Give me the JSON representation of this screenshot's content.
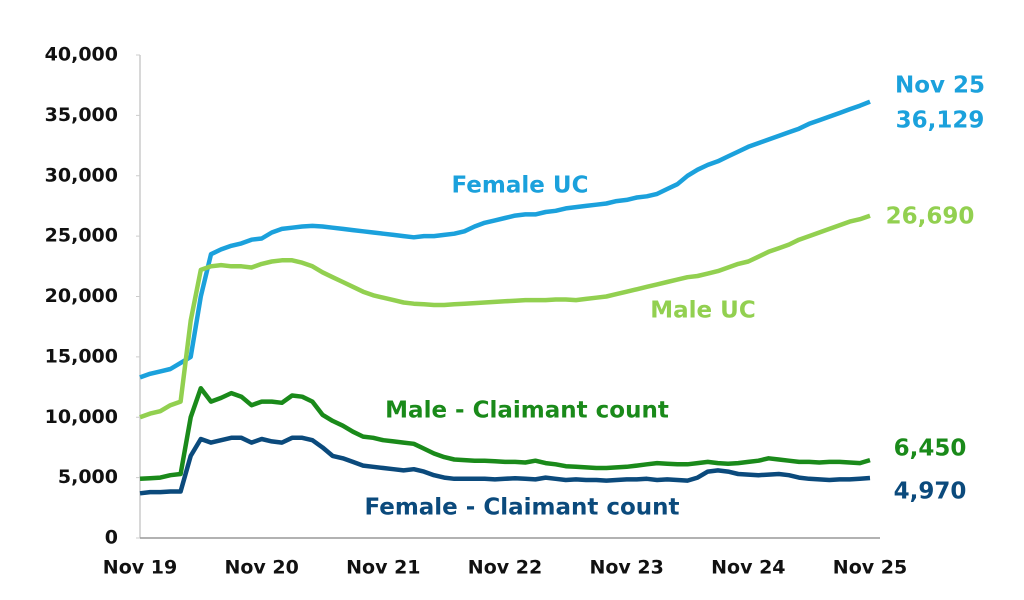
{
  "chart_data": {
    "type": "line",
    "categories": [
      "Nov 19",
      null,
      null,
      null,
      null,
      null,
      null,
      null,
      null,
      null,
      null,
      null,
      "Nov 20",
      null,
      null,
      null,
      null,
      null,
      null,
      null,
      null,
      null,
      null,
      null,
      "Nov 21",
      null,
      null,
      null,
      null,
      null,
      null,
      null,
      null,
      null,
      null,
      null,
      "Nov 22",
      null,
      null,
      null,
      null,
      null,
      null,
      null,
      null,
      null,
      null,
      null,
      "Nov 23",
      null,
      null,
      null,
      null,
      null,
      null,
      null,
      null,
      null,
      null,
      null,
      "Nov 24",
      null,
      null,
      null,
      null,
      null,
      null,
      null,
      null,
      null,
      null,
      null,
      "Nov 25"
    ],
    "ylim": [
      0,
      40000
    ],
    "yticks": [
      0,
      {
        "value": 5000,
        "label": "5,000"
      },
      {
        "value": 10000,
        "label": "10,000"
      },
      {
        "value": 15000,
        "label": "15,000"
      },
      {
        "value": 20000,
        "label": "20,000"
      },
      {
        "value": 25000,
        "label": "25,000"
      },
      {
        "value": 30000,
        "label": "30,000"
      },
      {
        "value": 35000,
        "label": "35,000"
      },
      {
        "value": 40000,
        "label": "40,000"
      }
    ],
    "grid": false,
    "annotations": [
      "Nov 25"
    ],
    "series": [
      {
        "name": "Female UC",
        "color": "#1ba1dc",
        "values": [
          13300,
          13600,
          13800,
          14000,
          14500,
          15000,
          20000,
          23500,
          23900,
          24200,
          24400,
          24700,
          24800,
          25300,
          25600,
          25700,
          25800,
          25850,
          25800,
          25700,
          25600,
          25500,
          25400,
          25300,
          25200,
          25100,
          25000,
          24900,
          25000,
          25000,
          25100,
          25200,
          25400,
          25800,
          26100,
          26300,
          26500,
          26700,
          26800,
          26800,
          27000,
          27100,
          27300,
          27400,
          27500,
          27600,
          27700,
          27900,
          28000,
          28200,
          28300,
          28500,
          28900,
          29300,
          30000,
          30500,
          30900,
          31200,
          31600,
          32000,
          32400,
          32700,
          33000,
          33300,
          33600,
          33900,
          34300,
          34600,
          34900,
          35200,
          35500,
          35800,
          36129
        ],
        "value_labels": [
          null,
          null,
          null,
          null,
          null,
          null,
          null,
          null,
          null,
          null,
          null,
          null,
          null,
          null,
          null,
          null,
          null,
          null,
          null,
          null,
          null,
          null,
          null,
          null,
          null,
          null,
          null,
          null,
          null,
          null,
          null,
          null,
          null,
          null,
          null,
          null,
          null,
          null,
          null,
          null,
          null,
          null,
          null,
          null,
          null,
          null,
          null,
          null,
          null,
          null,
          null,
          null,
          null,
          null,
          null,
          null,
          null,
          null,
          null,
          null,
          null,
          null,
          null,
          null,
          null,
          null,
          null,
          null,
          null,
          null,
          null,
          null,
          "36,129"
        ]
      },
      {
        "name": "Male UC",
        "color": "#92d050",
        "values": [
          10000,
          10300,
          10500,
          11000,
          11300,
          18000,
          22200,
          22500,
          22600,
          22500,
          22500,
          22400,
          22700,
          22900,
          23000,
          23000,
          22800,
          22500,
          22000,
          21600,
          21200,
          20800,
          20400,
          20100,
          19900,
          19700,
          19500,
          19400,
          19350,
          19300,
          19300,
          19350,
          19400,
          19450,
          19500,
          19550,
          19600,
          19650,
          19700,
          19700,
          19700,
          19750,
          19750,
          19700,
          19800,
          19900,
          20000,
          20200,
          20400,
          20600,
          20800,
          21000,
          21200,
          21400,
          21600,
          21700,
          21900,
          22100,
          22400,
          22700,
          22900,
          23300,
          23700,
          24000,
          24300,
          24700,
          25000,
          25300,
          25600,
          25900,
          26200,
          26400,
          26690
        ],
        "value_labels": [
          null,
          null,
          null,
          null,
          null,
          null,
          null,
          null,
          null,
          null,
          null,
          null,
          null,
          null,
          null,
          null,
          null,
          null,
          null,
          null,
          null,
          null,
          null,
          null,
          null,
          null,
          null,
          null,
          null,
          null,
          null,
          null,
          null,
          null,
          null,
          null,
          null,
          null,
          null,
          null,
          null,
          null,
          null,
          null,
          null,
          null,
          null,
          null,
          null,
          null,
          null,
          null,
          null,
          null,
          null,
          null,
          null,
          null,
          null,
          null,
          null,
          null,
          null,
          null,
          null,
          null,
          null,
          null,
          null,
          null,
          null,
          null,
          "26,690"
        ]
      },
      {
        "name": "Male - Claimant count",
        "color": "#1a8a1a",
        "values": [
          4900,
          4950,
          5000,
          5200,
          5300,
          10000,
          12400,
          11300,
          11600,
          12000,
          11700,
          11000,
          11300,
          11300,
          11200,
          11800,
          11700,
          11300,
          10200,
          9700,
          9300,
          8800,
          8400,
          8300,
          8100,
          8000,
          7900,
          7800,
          7400,
          7000,
          6700,
          6500,
          6450,
          6400,
          6400,
          6350,
          6300,
          6300,
          6250,
          6400,
          6200,
          6100,
          5950,
          5900,
          5850,
          5800,
          5800,
          5850,
          5900,
          6000,
          6100,
          6200,
          6150,
          6100,
          6100,
          6200,
          6300,
          6200,
          6150,
          6200,
          6300,
          6400,
          6600,
          6500,
          6400,
          6300,
          6300,
          6250,
          6300,
          6300,
          6250,
          6200,
          6450
        ],
        "value_labels": [
          null,
          null,
          null,
          null,
          null,
          null,
          null,
          null,
          null,
          null,
          null,
          null,
          null,
          null,
          null,
          null,
          null,
          null,
          null,
          null,
          null,
          null,
          null,
          null,
          null,
          null,
          null,
          null,
          null,
          null,
          null,
          null,
          null,
          null,
          null,
          null,
          null,
          null,
          null,
          null,
          null,
          null,
          null,
          null,
          null,
          null,
          null,
          null,
          null,
          null,
          null,
          null,
          null,
          null,
          null,
          null,
          null,
          null,
          null,
          null,
          null,
          null,
          null,
          null,
          null,
          null,
          null,
          null,
          null,
          null,
          null,
          null,
          "6,450"
        ]
      },
      {
        "name": "Female - Claimant count",
        "color": "#0b4a7c",
        "values": [
          3700,
          3800,
          3800,
          3850,
          3850,
          6800,
          8200,
          7900,
          8100,
          8300,
          8300,
          7900,
          8200,
          8000,
          7900,
          8300,
          8300,
          8100,
          7500,
          6800,
          6600,
          6300,
          6000,
          5900,
          5800,
          5700,
          5600,
          5700,
          5500,
          5200,
          5000,
          4900,
          4900,
          4900,
          4900,
          4850,
          4900,
          4950,
          4900,
          4850,
          5000,
          4900,
          4800,
          4850,
          4800,
          4800,
          4750,
          4800,
          4850,
          4850,
          4900,
          4800,
          4850,
          4800,
          4750,
          5000,
          5500,
          5600,
          5500,
          5300,
          5250,
          5200,
          5250,
          5300,
          5200,
          5000,
          4900,
          4850,
          4800,
          4850,
          4850,
          4900,
          4970
        ],
        "value_labels": [
          null,
          null,
          null,
          null,
          null,
          null,
          null,
          null,
          null,
          null,
          null,
          null,
          null,
          null,
          null,
          null,
          null,
          null,
          null,
          null,
          null,
          null,
          null,
          null,
          null,
          null,
          null,
          null,
          null,
          null,
          null,
          null,
          null,
          null,
          null,
          null,
          null,
          null,
          null,
          null,
          null,
          null,
          null,
          null,
          null,
          null,
          null,
          null,
          null,
          null,
          null,
          null,
          null,
          null,
          null,
          null,
          null,
          null,
          null,
          null,
          null,
          null,
          null,
          null,
          null,
          null,
          null,
          null,
          null,
          null,
          null,
          null,
          "4,970"
        ]
      }
    ]
  }
}
